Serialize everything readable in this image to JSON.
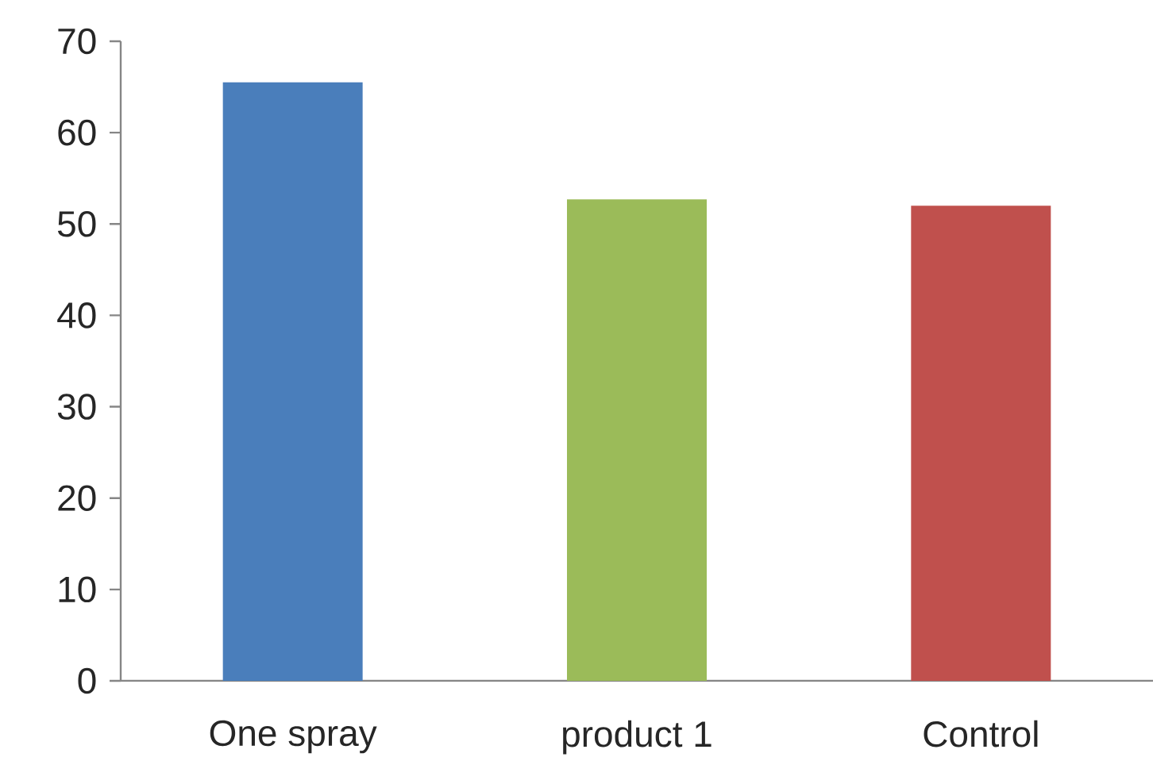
{
  "chart_data": {
    "type": "bar",
    "categories": [
      "One spray",
      "product 1",
      "Control"
    ],
    "values": [
      65.5,
      52.7,
      52.0
    ],
    "colors": [
      "#4a7ebb",
      "#9bbb59",
      "#c0504d"
    ],
    "ylim": [
      0,
      70
    ],
    "yticks": [
      0,
      10,
      20,
      30,
      40,
      50,
      60,
      70
    ],
    "grid": false
  }
}
